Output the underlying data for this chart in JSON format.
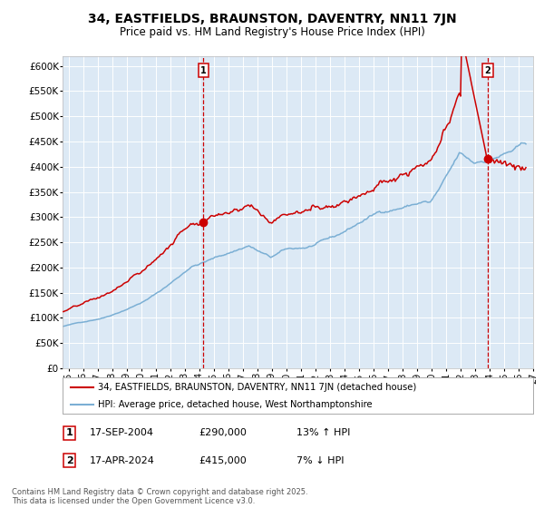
{
  "title": "34, EASTFIELDS, BRAUNSTON, DAVENTRY, NN11 7JN",
  "subtitle": "Price paid vs. HM Land Registry's House Price Index (HPI)",
  "title_fontsize": 10,
  "subtitle_fontsize": 8.5,
  "background_color": "#ffffff",
  "plot_bg_color": "#dce9f5",
  "grid_color": "#ffffff",
  "red_line_color": "#cc0000",
  "blue_line_color": "#7bafd4",
  "marker_color": "#cc0000",
  "vline_color": "#cc0000",
  "ylim": [
    0,
    620000
  ],
  "ytick_labels": [
    "£0",
    "£50K",
    "£100K",
    "£150K",
    "£200K",
    "£250K",
    "£300K",
    "£350K",
    "£400K",
    "£450K",
    "£500K",
    "£550K",
    "£600K"
  ],
  "ytick_values": [
    0,
    50000,
    100000,
    150000,
    200000,
    250000,
    300000,
    350000,
    400000,
    450000,
    500000,
    550000,
    600000
  ],
  "sale1_year": 2004,
  "sale1_month": 9,
  "sale1_price": 290000,
  "sale1_label": "17-SEP-2004",
  "sale1_hpi": "13% ↑ HPI",
  "sale2_year": 2024,
  "sale2_month": 4,
  "sale2_price": 415000,
  "sale2_label": "17-APR-2024",
  "sale2_hpi": "7% ↓ HPI",
  "legend_line1": "34, EASTFIELDS, BRAUNSTON, DAVENTRY, NN11 7JN (detached house)",
  "legend_line2": "HPI: Average price, detached house, West Northamptonshire",
  "footer": "Contains HM Land Registry data © Crown copyright and database right 2025.\nThis data is licensed under the Open Government Licence v3.0."
}
